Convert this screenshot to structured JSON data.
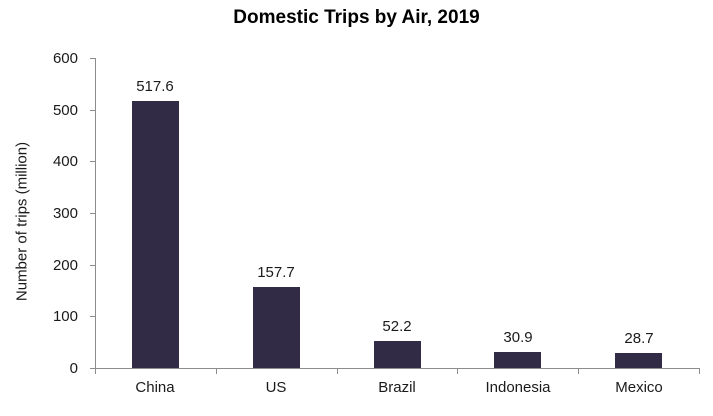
{
  "chart_data": {
    "type": "bar",
    "title": "Domestic Trips by Air, 2019",
    "xlabel": "",
    "ylabel": "Number of trips (million)",
    "categories": [
      "China",
      "US",
      "Brazil",
      "Indonesia",
      "Mexico"
    ],
    "values": [
      517.6,
      157.7,
      52.2,
      30.9,
      28.7
    ],
    "data_labels": [
      "517.6",
      "157.7",
      "52.2",
      "30.9",
      "28.7"
    ],
    "ylim": [
      0,
      600
    ],
    "yticks": [
      0,
      100,
      200,
      300,
      400,
      500,
      600
    ],
    "grid": "off",
    "legend": "none",
    "bar_color": "#312b45",
    "axis_color": "#8c8c8c",
    "text_color": "#1a1a1a",
    "background_color": "#ffffff"
  }
}
